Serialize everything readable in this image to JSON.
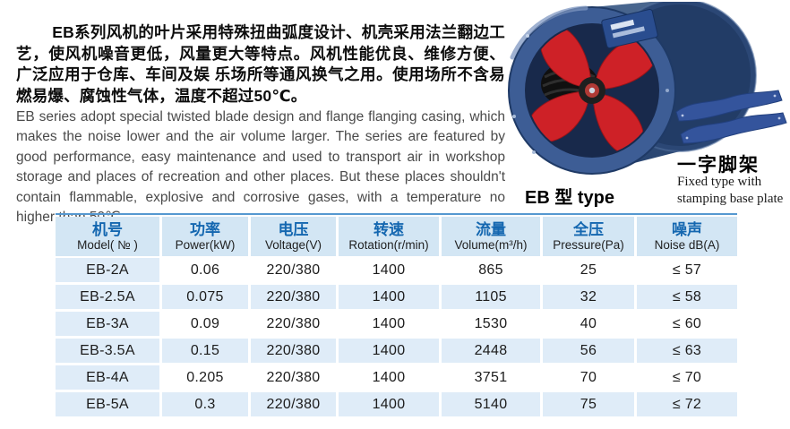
{
  "intro": {
    "cn": "EB系列风机的叶片采用特殊扭曲弧度设计、机壳采用法兰翻边工艺，使风机噪音更低，风量更大等特点。风机性能优良、维修方便、广泛应用于仓库、车间及娱 乐场所等通风换气之用。使用场所不含易燃易爆、腐蚀性气体，温度不超过50℃。",
    "en": "EB series adopt special twisted blade design and flange flanging casing, which makes the noise lower and the air volume larger. The series are featured by good performance, easy maintenance and used to transport air in workshop storage and places of recreation and other places. But these places shouldn't contain flammable, explosive and corrosive gases, with a temperature no higher than 50℃."
  },
  "fan": {
    "caption": "EB 型 type",
    "casing_color": "#3d5d95",
    "blade_color": "#ce2127"
  },
  "bracket": {
    "label_cn": "一字脚架",
    "label_en": [
      "Fixed type with",
      "stamping base plate"
    ],
    "color": "#34549c"
  },
  "table": {
    "accent_color": "#1467b0",
    "header_bg": "#d3e6f4",
    "stripe_bg": "#dfecf8",
    "top_border_color": "#5598d0",
    "columns": [
      {
        "cn": "机号",
        "en": "Model( № )"
      },
      {
        "cn": "功率",
        "en": "Power(kW)"
      },
      {
        "cn": "电压",
        "en": "Voltage(V)"
      },
      {
        "cn": "转速",
        "en": "Rotation(r/min)"
      },
      {
        "cn": "流量",
        "en": "Volume(m³/h)"
      },
      {
        "cn": "全压",
        "en": "Pressure(Pa)"
      },
      {
        "cn": "噪声",
        "en": "Noise dB(A)"
      }
    ],
    "rows": [
      [
        "EB-2A",
        "0.06",
        "220/380",
        "1400",
        "865",
        "25",
        "≤ 57"
      ],
      [
        "EB-2.5A",
        "0.075",
        "220/380",
        "1400",
        "1105",
        "32",
        "≤ 58"
      ],
      [
        "EB-3A",
        "0.09",
        "220/380",
        "1400",
        "1530",
        "40",
        "≤ 60"
      ],
      [
        "EB-3.5A",
        "0.15",
        "220/380",
        "1400",
        "2448",
        "56",
        "≤ 63"
      ],
      [
        "EB-4A",
        "0.205",
        "220/380",
        "1400",
        "3751",
        "70",
        "≤ 70"
      ],
      [
        "EB-5A",
        "0.3",
        "220/380",
        "1400",
        "5140",
        "75",
        "≤ 72"
      ]
    ]
  }
}
